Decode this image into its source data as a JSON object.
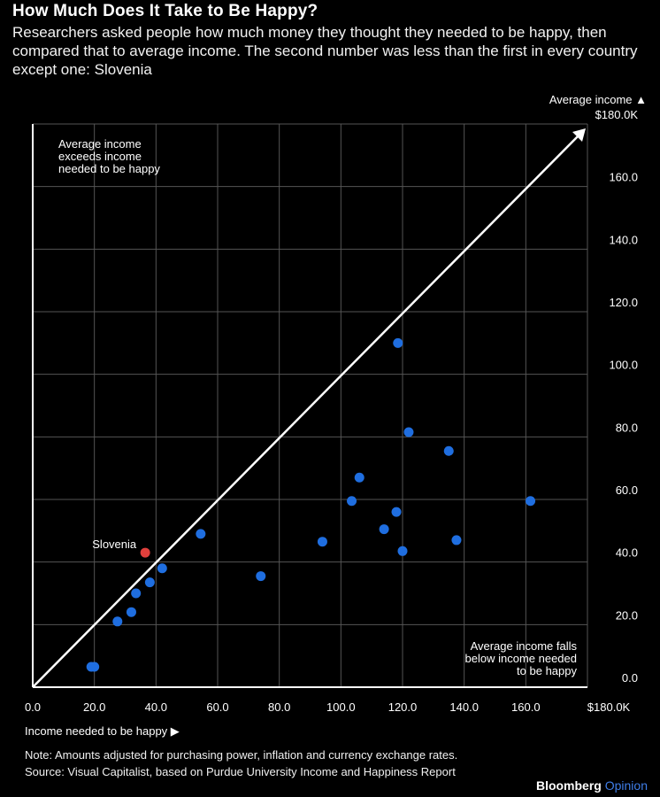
{
  "header": {
    "title": "How Much Does It Take to Be Happy?",
    "subtitle": "Researchers asked people how much money they thought they needed to be happy, then compared that to average income. The second number was less than the first in every country except one: Slovenia"
  },
  "footer": {
    "note": "Note: Amounts adjusted for purchasing power, inflation and currency exchange rates.",
    "source": "Source: Visual Capitalist, based on Purdue University Income and Happiness Report",
    "brand": "Bloomberg",
    "brand_suffix": "Opinion"
  },
  "chart_data": {
    "type": "scatter",
    "xlabel": "Income needed to be happy ▶",
    "ylabel": "Average income ▲",
    "xlim": [
      0,
      180
    ],
    "ylim": [
      0,
      180
    ],
    "x_ticks": [
      "0.0",
      "20.0",
      "40.0",
      "60.0",
      "80.0",
      "100.0",
      "120.0",
      "140.0",
      "160.0",
      "$180.0K"
    ],
    "y_ticks": [
      "0.0",
      "20.0",
      "40.0",
      "60.0",
      "80.0",
      "100.0",
      "120.0",
      "140.0",
      "160.0",
      "$180.0K"
    ],
    "grid": true,
    "annotations": {
      "upper_left": [
        "Average income",
        "exceeds income",
        "needed to be happy"
      ],
      "lower_right": [
        "Average income falls",
        "below income needed",
        "to be happy"
      ],
      "highlight_label": "Slovenia"
    },
    "colors": {
      "point": "#1f6ee0",
      "highlight": "#e0403c",
      "axis": "#ffffff",
      "grid": "#555555"
    },
    "points": [
      {
        "x": 19,
        "y": 6.5
      },
      {
        "x": 20,
        "y": 6.5
      },
      {
        "x": 27.5,
        "y": 21
      },
      {
        "x": 32,
        "y": 24
      },
      {
        "x": 33.5,
        "y": 30
      },
      {
        "x": 38,
        "y": 33.5
      },
      {
        "x": 42,
        "y": 38
      },
      {
        "x": 54.5,
        "y": 49
      },
      {
        "x": 74,
        "y": 35.5
      },
      {
        "x": 94,
        "y": 46.5
      },
      {
        "x": 103.5,
        "y": 59.5
      },
      {
        "x": 106,
        "y": 67
      },
      {
        "x": 114,
        "y": 50.5
      },
      {
        "x": 118,
        "y": 56
      },
      {
        "x": 118.5,
        "y": 110
      },
      {
        "x": 120,
        "y": 43.5
      },
      {
        "x": 122,
        "y": 81.5
      },
      {
        "x": 135,
        "y": 75.5
      },
      {
        "x": 137.5,
        "y": 47
      },
      {
        "x": 161.5,
        "y": 59.5
      },
      {
        "x": 36.5,
        "y": 43,
        "label": "Slovenia",
        "highlight": true
      }
    ]
  }
}
